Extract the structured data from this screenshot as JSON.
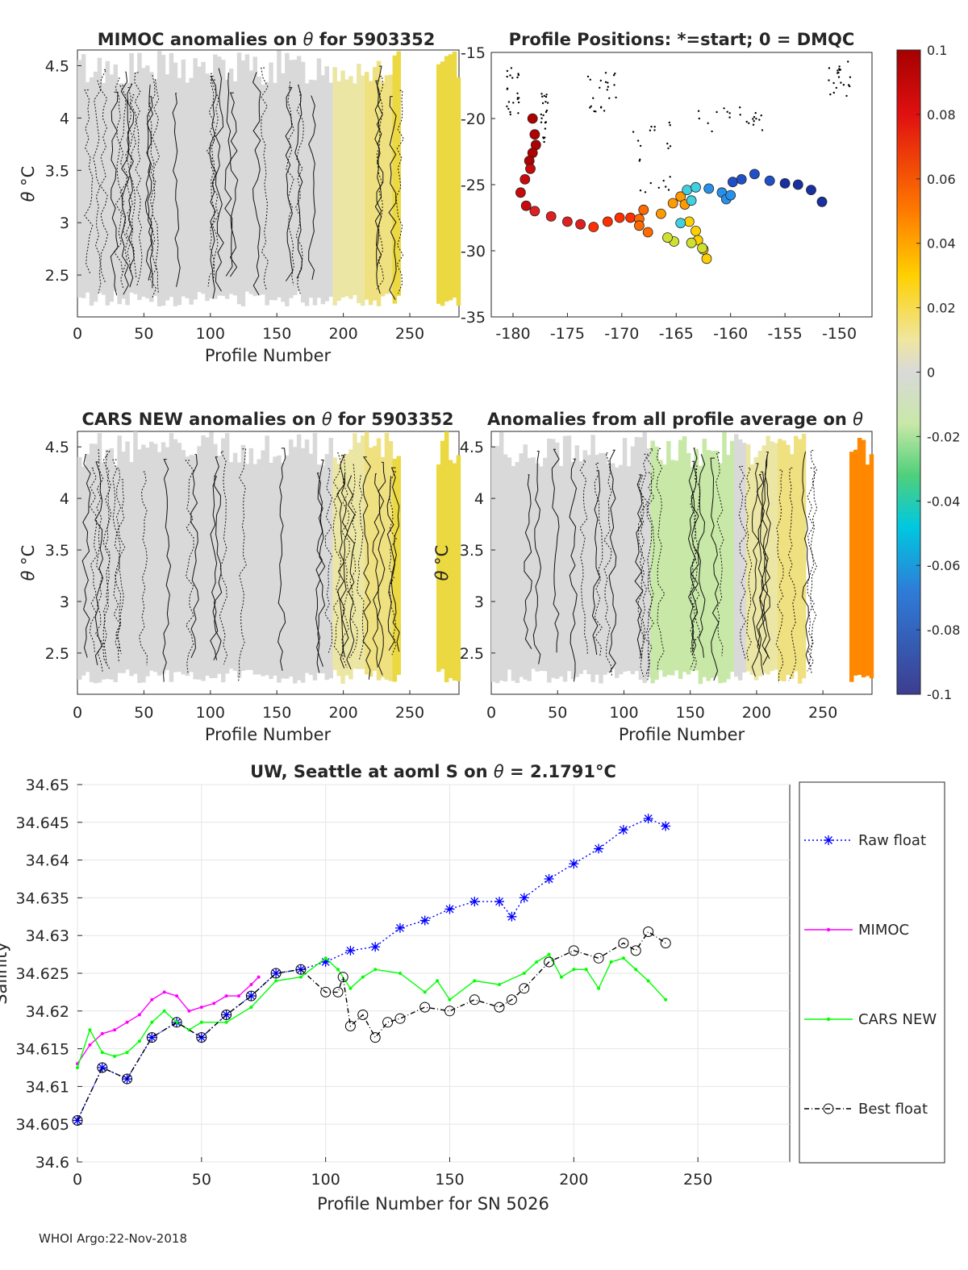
{
  "footer": "WHOI Argo:22-Nov-2018",
  "colors": {
    "raw_float": "#0000ff",
    "mimoc": "#ff00ff",
    "cars_new": "#00ff00",
    "best_float": "#000000",
    "anomaly_neutral": "#d9d9d9",
    "anomaly_positive": "#e8d820",
    "anomaly_negative": "#c8e8a8"
  },
  "chart_data": [
    {
      "id": "mimoc",
      "type": "heatmap",
      "title_prefix": "MIMOC anomalies on ",
      "title_symbol": "θ",
      "title_suffix": "  for 5903352",
      "xlabel": "Profile Number",
      "ylabel_symbol": "θ",
      "ylabel_unit": "°C",
      "xlim": [
        0,
        287
      ],
      "ylim": [
        2.1,
        4.65
      ],
      "xticks": [
        "0",
        "50",
        "100",
        "150",
        "200",
        "250"
      ],
      "yticks": [
        "2.5",
        "3",
        "3.5",
        "4",
        "4.5"
      ]
    },
    {
      "id": "positions",
      "type": "scatter",
      "title": "Profile Positions: *=start; 0 = DMQC",
      "xlim": [
        -182,
        -147
      ],
      "ylim": [
        -35,
        -15
      ],
      "xticks": [
        "-180",
        "-175",
        "-170",
        "-165",
        "-160",
        "-155",
        "-150"
      ],
      "yticks": [
        "-15",
        "-20",
        "-25",
        "-30",
        "-35"
      ],
      "track_lon": [
        -178.2,
        -178.0,
        -177.9,
        -178.2,
        -178.5,
        -178.4,
        -178.9,
        -179.3,
        -178.8,
        -178.0,
        -176.5,
        -175.0,
        -173.8,
        -172.6,
        -171.3,
        -170.2,
        -169.2,
        -168.4,
        -168.0,
        -168.4,
        -167.6,
        -166.4,
        -165.3,
        -164.6,
        -164.2,
        -163.8,
        -163.2,
        -163.0,
        -162.5,
        -162.2,
        -162.6,
        -163.6,
        -165.2,
        -165.8,
        -164.6,
        -163.6,
        -164.0,
        -163.2,
        -162.0,
        -160.8,
        -160.4,
        -160.0,
        -159.8,
        -159.0,
        -157.8,
        -156.4,
        -155.0,
        -153.8,
        -152.6,
        -151.6
      ],
      "track_lat": [
        -20.0,
        -21.2,
        -22.0,
        -22.6,
        -23.2,
        -23.8,
        -24.6,
        -25.6,
        -26.6,
        -27.0,
        -27.4,
        -27.8,
        -28.0,
        -28.2,
        -27.8,
        -27.5,
        -27.5,
        -27.6,
        -26.9,
        -28.1,
        -28.6,
        -27.2,
        -26.4,
        -25.9,
        -26.5,
        -27.8,
        -28.5,
        -29.2,
        -29.9,
        -30.6,
        -29.8,
        -29.4,
        -29.3,
        -29.0,
        -27.9,
        -26.2,
        -25.4,
        -25.2,
        -25.3,
        -25.6,
        -26.1,
        -25.8,
        -24.8,
        -24.6,
        -24.2,
        -24.7,
        -24.9,
        -25.0,
        -25.4,
        -26.3
      ],
      "colorbar_ticks": [
        "0.1",
        "0.08",
        "0.06",
        "0.04",
        "0.02",
        "0",
        "-0.02",
        "-0.04",
        "-0.06",
        "-0.08",
        "-0.1"
      ]
    },
    {
      "id": "cars",
      "type": "heatmap",
      "title_prefix": "CARS NEW anomalies on ",
      "title_symbol": "θ",
      "title_suffix": " for 5903352",
      "xlabel": "Profile Number",
      "ylabel_symbol": "θ",
      "ylabel_unit": "°C",
      "xlim": [
        0,
        287
      ],
      "ylim": [
        2.1,
        4.65
      ],
      "xticks": [
        "0",
        "50",
        "100",
        "150",
        "200",
        "250"
      ],
      "yticks": [
        "2.5",
        "3",
        "3.5",
        "4",
        "4.5"
      ]
    },
    {
      "id": "allprof",
      "type": "heatmap",
      "title_prefix": "Anomalies from all profile average on ",
      "title_symbol": "θ",
      "xlabel": "Profile Number",
      "ylabel_symbol": "θ",
      "ylabel_unit": "°C",
      "xlim": [
        0,
        287
      ],
      "ylim": [
        2.1,
        4.65
      ],
      "xticks": [
        "0",
        "50",
        "100",
        "150",
        "200",
        "250"
      ],
      "yticks": [
        "2.5",
        "3",
        "3.5",
        "4",
        "4.5"
      ]
    },
    {
      "id": "salinity",
      "type": "line",
      "title_prefix": "UW, Seattle at aoml S on ",
      "title_symbol": "θ",
      "title_mid": " = 2.1791",
      "title_unit": "°C",
      "xlabel": "Profile Number for SN 5026",
      "ylabel": "Salinity",
      "xlim": [
        0,
        287
      ],
      "ylim": [
        34.6,
        34.65
      ],
      "xticks": [
        "0",
        "50",
        "100",
        "150",
        "200",
        "250"
      ],
      "yticks": [
        "34.6",
        "34.605",
        "34.61",
        "34.615",
        "34.62",
        "34.625",
        "34.63",
        "34.635",
        "34.64",
        "34.645",
        "34.65"
      ],
      "series": [
        {
          "name": "Raw float",
          "x": [
            0,
            10,
            20,
            30,
            40,
            50,
            60,
            70,
            80,
            90,
            100,
            110,
            120,
            130,
            140,
            150,
            160,
            170,
            175,
            180,
            190,
            200,
            210,
            220,
            230,
            237
          ],
          "y": [
            34.6055,
            34.6125,
            34.611,
            34.6165,
            34.6185,
            34.6165,
            34.6195,
            34.622,
            34.625,
            34.6255,
            34.6265,
            34.628,
            34.6285,
            34.631,
            34.632,
            34.6335,
            34.6345,
            34.6345,
            34.6325,
            34.635,
            34.6375,
            34.6395,
            34.6415,
            34.644,
            34.6455,
            34.6445
          ]
        },
        {
          "name": "MIMOC",
          "x": [
            0,
            5,
            10,
            15,
            20,
            25,
            30,
            35,
            40,
            45,
            50,
            55,
            60,
            65,
            70,
            73
          ],
          "y": [
            34.613,
            34.6155,
            34.617,
            34.6175,
            34.6185,
            34.6195,
            34.6215,
            34.6225,
            34.622,
            34.62,
            34.6205,
            34.621,
            34.622,
            34.622,
            34.6235,
            34.6245
          ]
        },
        {
          "name": "CARS NEW",
          "x": [
            0,
            5,
            10,
            15,
            20,
            25,
            30,
            35,
            40,
            45,
            50,
            60,
            70,
            80,
            90,
            100,
            105,
            110,
            115,
            120,
            130,
            140,
            145,
            150,
            160,
            170,
            180,
            185,
            190,
            195,
            200,
            205,
            210,
            215,
            220,
            225,
            230,
            237
          ],
          "y": [
            34.6125,
            34.6175,
            34.6145,
            34.614,
            34.6145,
            34.616,
            34.6185,
            34.62,
            34.6185,
            34.6175,
            34.6185,
            34.6185,
            34.6205,
            34.624,
            34.6245,
            34.627,
            34.6255,
            34.623,
            34.6245,
            34.6255,
            34.625,
            34.6225,
            34.624,
            34.6215,
            34.624,
            34.6235,
            34.625,
            34.6265,
            34.6275,
            34.6245,
            34.6255,
            34.6255,
            34.623,
            34.6265,
            34.627,
            34.6255,
            34.624,
            34.6215
          ]
        },
        {
          "name": "Best float",
          "x": [
            0,
            10,
            20,
            30,
            40,
            50,
            60,
            70,
            80,
            90,
            100,
            105,
            107,
            110,
            115,
            120,
            125,
            130,
            140,
            150,
            160,
            170,
            175,
            180,
            190,
            200,
            210,
            220,
            225,
            230,
            237
          ],
          "y": [
            34.6055,
            34.6125,
            34.611,
            34.6165,
            34.6185,
            34.6165,
            34.6195,
            34.622,
            34.625,
            34.6255,
            34.6225,
            34.6225,
            34.6245,
            34.618,
            34.6195,
            34.6165,
            34.6185,
            34.619,
            34.6205,
            34.62,
            34.6215,
            34.6205,
            34.6215,
            34.623,
            34.6265,
            34.628,
            34.627,
            34.629,
            34.628,
            34.6305,
            34.629
          ]
        }
      ]
    }
  ]
}
